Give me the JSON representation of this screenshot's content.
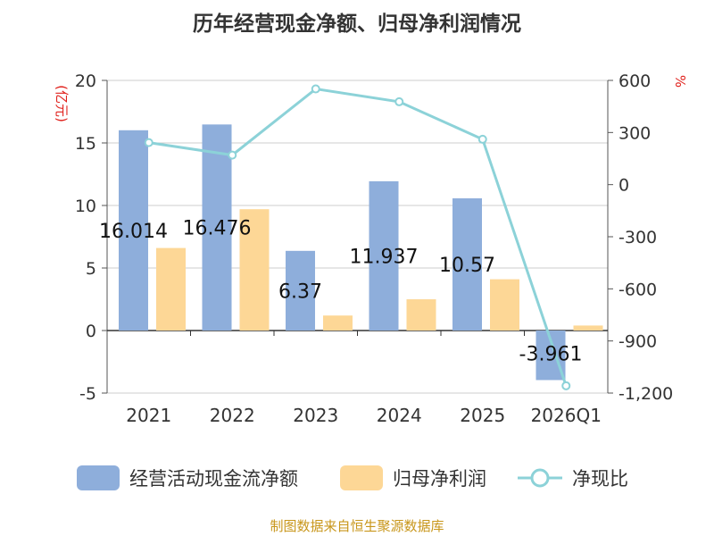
{
  "title": "历年经营现金净额、归母净利润情况",
  "left_unit": "(亿元)",
  "right_unit": "%",
  "source": "制图数据来自恒生聚源数据库",
  "colors": {
    "cash": "#8eaedb",
    "profit": "#fdd796",
    "ratio": "#8cd2d8"
  },
  "chart_data": {
    "type": "bar",
    "categories": [
      "2021",
      "2022",
      "2023",
      "2024",
      "2025",
      "2026Q1"
    ],
    "series": [
      {
        "name": "经营活动现金流净额",
        "type": "bar",
        "axis": "left",
        "values": [
          16.014,
          16.476,
          6.37,
          11.937,
          10.57,
          -3.961
        ],
        "labels": [
          "16.014",
          "16.476",
          "6.37",
          "11.937",
          "10.57",
          "-3.961"
        ]
      },
      {
        "name": "归母净利润",
        "type": "bar",
        "axis": "left",
        "values": [
          6.6,
          9.7,
          1.2,
          2.5,
          4.1,
          0.4
        ]
      },
      {
        "name": "净现比",
        "type": "line",
        "axis": "right",
        "values": [
          242,
          170,
          551,
          477,
          261,
          -1158
        ]
      }
    ],
    "y_left": {
      "min": -5,
      "max": 20,
      "ticks": [
        "-5",
        "0",
        "5",
        "10",
        "15",
        "20"
      ]
    },
    "y_right": {
      "min": -1200,
      "max": 600,
      "ticks": [
        "-1,200",
        "-900",
        "-600",
        "-300",
        "0",
        "300",
        "600"
      ]
    },
    "grid": true,
    "legend_position": "bottom"
  }
}
